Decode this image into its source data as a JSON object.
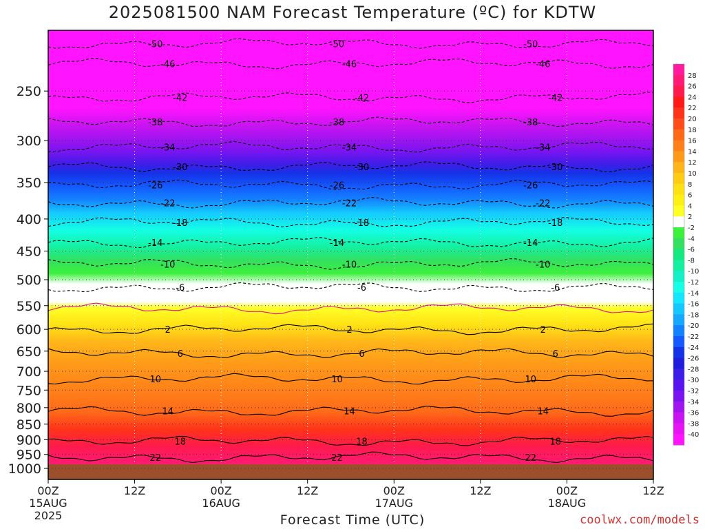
{
  "title": "2025081500 NAM Forecast Temperature (ºC) for KDTW",
  "credit": "coolwx.com/models",
  "chart_data": {
    "type": "heatmap",
    "title": "2025081500 NAM Forecast Temperature (ºC) for KDTW",
    "xlabel": "Forecast Time (UTC)",
    "ylabel": "",
    "x_ticks": [
      {
        "label": "00Z",
        "sub": "15AUG",
        "sub2": "2025",
        "hours": 0
      },
      {
        "label": "12Z",
        "sub": "",
        "sub2": "",
        "hours": 12
      },
      {
        "label": "00Z",
        "sub": "16AUG",
        "sub2": "",
        "hours": 24
      },
      {
        "label": "12Z",
        "sub": "",
        "sub2": "",
        "hours": 36
      },
      {
        "label": "00Z",
        "sub": "17AUG",
        "sub2": "",
        "hours": 48
      },
      {
        "label": "12Z",
        "sub": "",
        "sub2": "",
        "hours": 60
      },
      {
        "label": "00Z",
        "sub": "18AUG",
        "sub2": "",
        "hours": 72
      },
      {
        "label": "12Z",
        "sub": "",
        "sub2": "",
        "hours": 84
      }
    ],
    "xlim_hours": [
      0,
      84
    ],
    "y_ticks": [
      250,
      300,
      350,
      400,
      450,
      500,
      550,
      600,
      650,
      700,
      750,
      800,
      850,
      900,
      950,
      1000
    ],
    "ylim_hPa": [
      200,
      1000
    ],
    "y_scale": "log",
    "colorbar_labels": [
      28,
      26,
      24,
      22,
      20,
      18,
      16,
      14,
      12,
      10,
      8,
      6,
      4,
      2,
      -2,
      -4,
      -6,
      -8,
      -10,
      -12,
      -14,
      -16,
      -18,
      -20,
      -22,
      -24,
      -26,
      -28,
      -30,
      -32,
      -34,
      -36,
      -38,
      -40
    ],
    "colorbar_colors": [
      "#ff1a9e",
      "#ff1a75",
      "#ff1a4d",
      "#ff1a1a",
      "#ff3319",
      "#ff4d19",
      "#ff6a19",
      "#ff8019",
      "#ff9a19",
      "#ffb419",
      "#ffcc14",
      "#ffe014",
      "#fff014",
      "#ffff26",
      "#ffffff",
      "#3cf03c",
      "#33e060",
      "#14e880",
      "#14f0a0",
      "#14f0c8",
      "#14ffe6",
      "#14e6ff",
      "#14c8ff",
      "#14a8ff",
      "#1482ff",
      "#145aff",
      "#1432e6",
      "#1e1edc",
      "#3c1ee6",
      "#5a14f0",
      "#7814f0",
      "#a014f0",
      "#c814f0",
      "#e614f0",
      "#ff14ff"
    ],
    "contour_levels": [
      {
        "value": -50,
        "label": "-50",
        "p": 210
      },
      {
        "value": -46,
        "label": "-46",
        "p": 226
      },
      {
        "value": -42,
        "label": "-42",
        "p": 256
      },
      {
        "value": -38,
        "label": "-38",
        "p": 280
      },
      {
        "value": -34,
        "label": "-34",
        "p": 307
      },
      {
        "value": -30,
        "label": "-30",
        "p": 330
      },
      {
        "value": -26,
        "label": "-26",
        "p": 353
      },
      {
        "value": -22,
        "label": "-22",
        "p": 377
      },
      {
        "value": -18,
        "label": "-18",
        "p": 405
      },
      {
        "value": -14,
        "label": "-14",
        "p": 436
      },
      {
        "value": -10,
        "label": "-10",
        "p": 472
      },
      {
        "value": -6,
        "label": "-6",
        "p": 514
      },
      {
        "value": -2,
        "label": "",
        "p": 556
      },
      {
        "value": 2,
        "label": "2",
        "p": 600
      },
      {
        "value": 6,
        "label": "6",
        "p": 655
      },
      {
        "value": 10,
        "label": "10",
        "p": 720
      },
      {
        "value": 14,
        "label": "14",
        "p": 810
      },
      {
        "value": 18,
        "label": "18",
        "p": 905
      },
      {
        "value": 22,
        "label": "22",
        "p": 960
      }
    ],
    "zero_line_label": "2",
    "ground": "surface",
    "grid": true
  }
}
